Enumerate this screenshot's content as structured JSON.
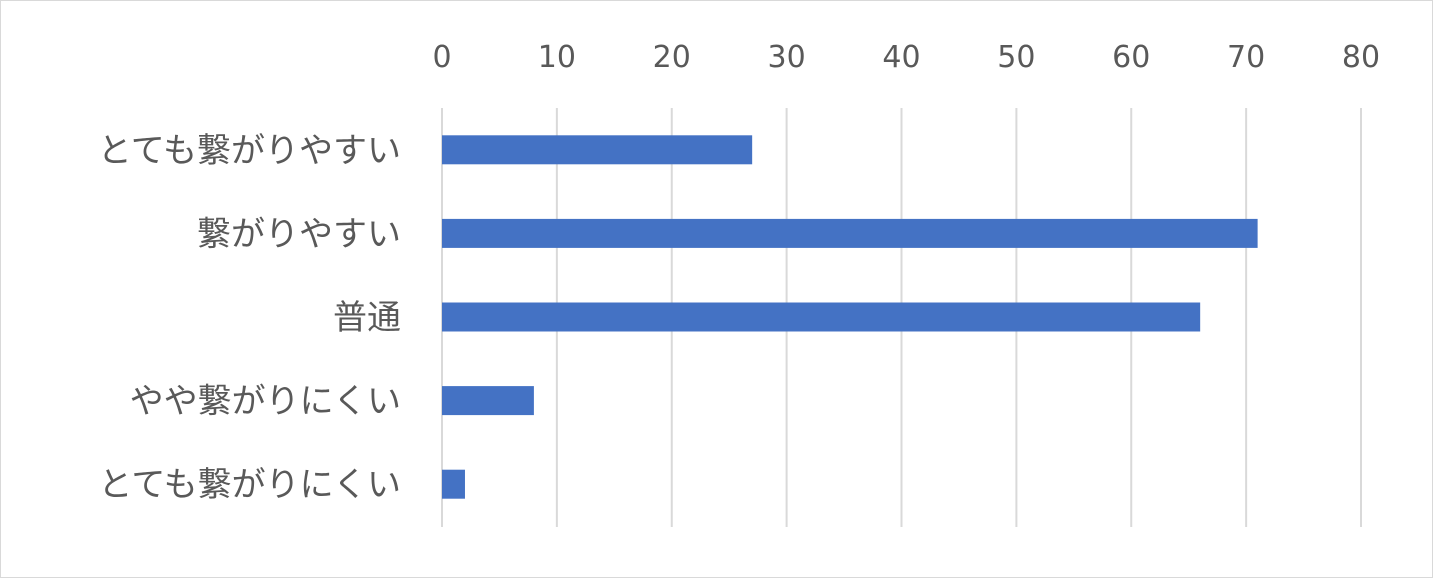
{
  "chart_data": {
    "type": "bar",
    "orientation": "horizontal",
    "categories": [
      "とても繋がりやすい",
      "繋がりやすい",
      "普通",
      "やや繋がりにくい",
      "とても繋がりにくい"
    ],
    "values": [
      27,
      71,
      66,
      8,
      2
    ],
    "xlim": [
      0,
      80
    ],
    "xticks": [
      0,
      10,
      20,
      30,
      40,
      50,
      60,
      70,
      80
    ],
    "x_axis_position": "top",
    "grid": true,
    "legend": "none",
    "colors": {
      "bar": "#4472c4",
      "grid": "#d9d9d9",
      "text": "#595959"
    }
  }
}
